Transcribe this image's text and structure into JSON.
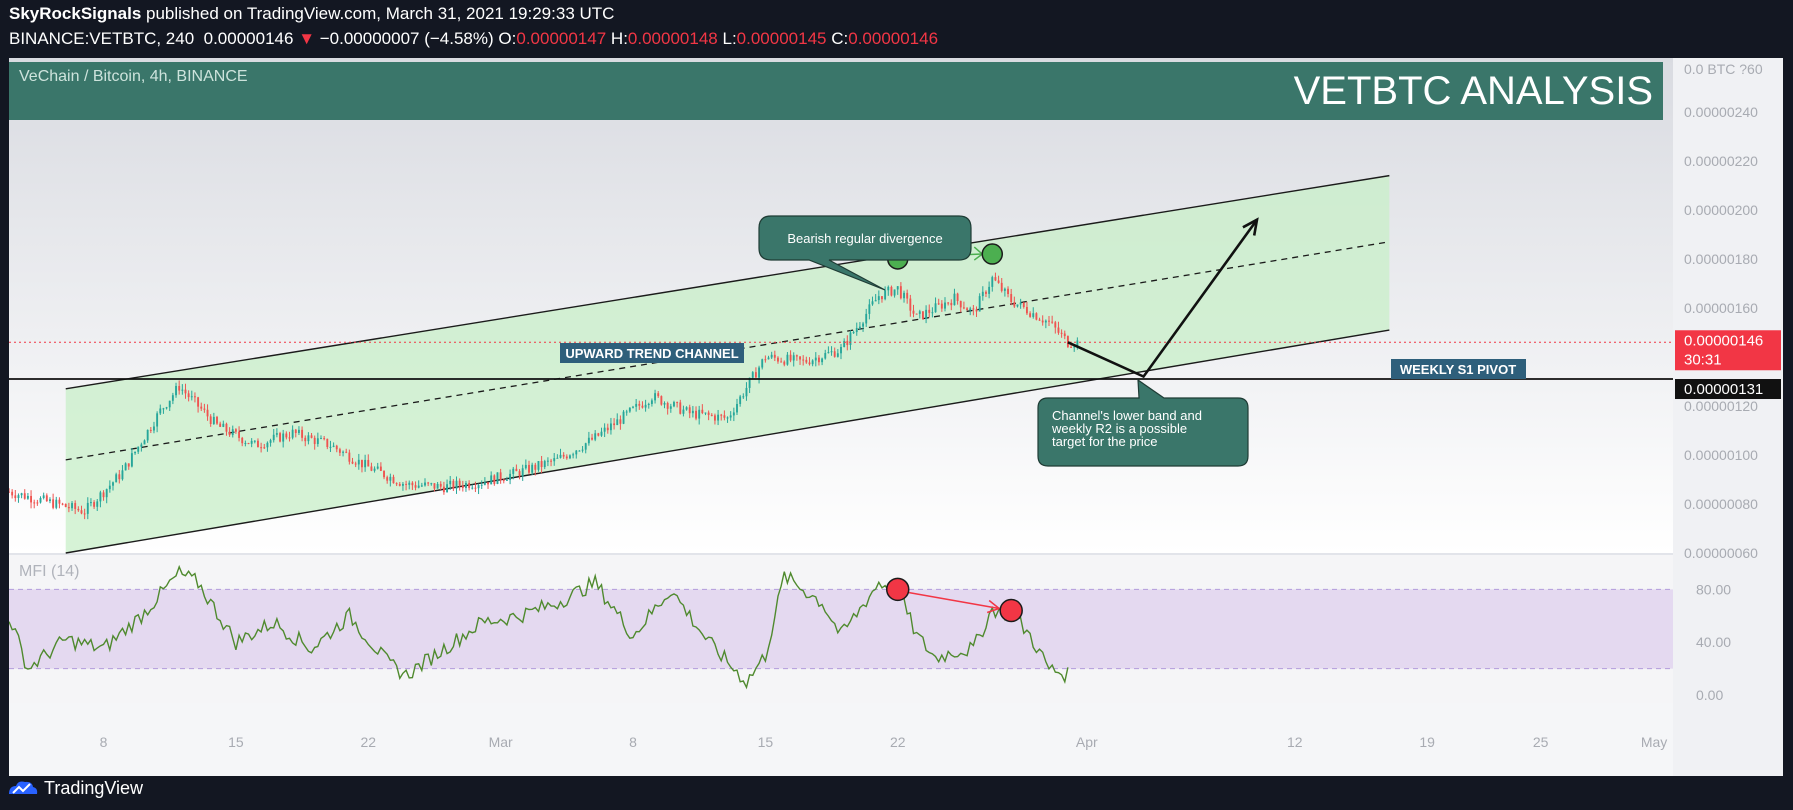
{
  "header": {
    "publisher": "SkyRockSignals",
    "published_text": "published on TradingView.com, March 31, 2021 19:29:33 UTC",
    "symbol": "BINANCE:VETBTC, 240",
    "last": "0.00000146",
    "change_arrow": "▼",
    "change": "−0.00000007 (−4.58%)",
    "o_label": "O:",
    "o": "0.00000147",
    "h_label": "H:",
    "h": "0.00000148",
    "l_label": "L:",
    "l": "0.00000145",
    "c_label": "C:",
    "c": "0.00000146"
  },
  "banner": {
    "pair": "VeChain / Bitcoin, 4h, BINANCE",
    "title": "VETBTC ANALYSIS",
    "color": "#3a766a"
  },
  "price_axis": {
    "ticks": [
      "0.00000240",
      "0.00000220",
      "0.00000200",
      "0.00000180",
      "0.00000160",
      "0.00000120",
      "0.00000100",
      "0.00000080",
      "0.00000060"
    ],
    "top_label": "0.0 BTC ?60",
    "last_price": "0.00000146",
    "countdown": "30:31",
    "pivot_price": "0.00000131"
  },
  "annotations": {
    "channel_label": "UPWARD TREND CHANNEL",
    "pivot_label": "WEEKLY S1 PIVOT",
    "divergence_note": "Bearish regular divergence",
    "target_note": [
      "Channel's lower band and",
      "weekly R2 is a possible",
      "target for the price"
    ]
  },
  "mfi": {
    "label": "MFI (14)",
    "ticks": [
      "80.00",
      "40.00",
      "0.00"
    ],
    "upper_band": 80,
    "lower_band": 20
  },
  "time_axis": {
    "labels": [
      "8",
      "15",
      "22",
      "Mar",
      "8",
      "15",
      "22",
      "Apr",
      "12",
      "19",
      "25",
      "May"
    ]
  },
  "footer": {
    "brand": "TradingView"
  },
  "chart_data": [
    {
      "type": "candlestick",
      "title": "VeChain / Bitcoin, 4h, BINANCE",
      "x_range": [
        "2021-02-03",
        "2021-05-02"
      ],
      "ylim": [
        6e-07,
        2.62e-06
      ],
      "close_anchors": [
        {
          "x": "2021-02-03",
          "y": 8.5e-07
        },
        {
          "x": "2021-02-05",
          "y": 8.1e-07
        },
        {
          "x": "2021-02-07",
          "y": 7.7e-07
        },
        {
          "x": "2021-02-09",
          "y": 9.3e-07
        },
        {
          "x": "2021-02-11",
          "y": 1.18e-06
        },
        {
          "x": "2021-02-12",
          "y": 1.28e-06
        },
        {
          "x": "2021-02-14",
          "y": 1.12e-06
        },
        {
          "x": "2021-02-16",
          "y": 1.04e-06
        },
        {
          "x": "2021-02-18",
          "y": 1.09e-06
        },
        {
          "x": "2021-02-20",
          "y": 1.04e-06
        },
        {
          "x": "2021-02-22",
          "y": 9.5e-07
        },
        {
          "x": "2021-02-24",
          "y": 8.8e-07
        },
        {
          "x": "2021-02-26",
          "y": 8.7e-07
        },
        {
          "x": "2021-02-28",
          "y": 8.9e-07
        },
        {
          "x": "2021-03-02",
          "y": 9.3e-07
        },
        {
          "x": "2021-03-04",
          "y": 9.8e-07
        },
        {
          "x": "2021-03-06",
          "y": 1.07e-06
        },
        {
          "x": "2021-03-09",
          "y": 1.24e-06
        },
        {
          "x": "2021-03-11",
          "y": 1.17e-06
        },
        {
          "x": "2021-03-13",
          "y": 1.15e-06
        },
        {
          "x": "2021-03-15",
          "y": 1.4e-06
        },
        {
          "x": "2021-03-17",
          "y": 1.38e-06
        },
        {
          "x": "2021-03-19",
          "y": 1.43e-06
        },
        {
          "x": "2021-03-21",
          "y": 1.65e-06
        },
        {
          "x": "2021-03-22",
          "y": 1.68e-06
        },
        {
          "x": "2021-03-23",
          "y": 1.56e-06
        },
        {
          "x": "2021-03-25",
          "y": 1.64e-06
        },
        {
          "x": "2021-03-26",
          "y": 1.58e-06
        },
        {
          "x": "2021-03-27",
          "y": 1.72e-06
        },
        {
          "x": "2021-03-28",
          "y": 1.63e-06
        },
        {
          "x": "2021-03-30",
          "y": 1.54e-06
        },
        {
          "x": "2021-03-31",
          "y": 1.46e-06
        }
      ],
      "last": 1.46e-06,
      "open": 1.47e-06,
      "high": 1.48e-06,
      "low": 1.45e-06,
      "close": 1.46e-06,
      "horizontal_lines": [
        {
          "name": "WEEKLY S1 PIVOT",
          "y": 1.31e-06
        }
      ],
      "channel": {
        "label": "UPWARD TREND CHANNEL",
        "upper": [
          {
            "x": "2021-02-06",
            "y": 1.27e-06
          },
          {
            "x": "2021-04-17",
            "y": 2.14e-06
          }
        ],
        "middle": [
          {
            "x": "2021-02-06",
            "y": 9.8e-07
          },
          {
            "x": "2021-04-17",
            "y": 1.87e-06
          }
        ],
        "lower": [
          {
            "x": "2021-02-06",
            "y": 6e-07
          },
          {
            "x": "2021-04-17",
            "y": 1.51e-06
          }
        ]
      },
      "projection": [
        {
          "x": "2021-03-31",
          "y": 1.46e-06
        },
        {
          "x": "2021-04-04",
          "y": 1.32e-06
        },
        {
          "x": "2021-04-10",
          "y": 1.96e-06
        }
      ],
      "divergence_points": [
        {
          "x": "2021-03-22",
          "y": 1.8e-06
        },
        {
          "x": "2021-03-27",
          "y": 1.82e-06
        }
      ],
      "colors": {
        "up": "#26a69a",
        "down": "#ef5350",
        "channel_fill": "#c8efc8",
        "banner": "#3a766a",
        "marker": "#4caf50"
      }
    },
    {
      "type": "line",
      "title": "MFI (14)",
      "ylim": [
        -6,
        106
      ],
      "bands": [
        20,
        80
      ],
      "anchors": [
        {
          "x": "2021-02-03",
          "y": 60
        },
        {
          "x": "2021-02-04",
          "y": 20
        },
        {
          "x": "2021-02-06",
          "y": 42
        },
        {
          "x": "2021-02-08",
          "y": 35
        },
        {
          "x": "2021-02-10",
          "y": 60
        },
        {
          "x": "2021-02-12",
          "y": 92
        },
        {
          "x": "2021-02-13",
          "y": 85
        },
        {
          "x": "2021-02-15",
          "y": 40
        },
        {
          "x": "2021-02-17",
          "y": 55
        },
        {
          "x": "2021-02-19",
          "y": 35
        },
        {
          "x": "2021-02-21",
          "y": 60
        },
        {
          "x": "2021-02-23",
          "y": 25
        },
        {
          "x": "2021-02-24",
          "y": 15
        },
        {
          "x": "2021-02-26",
          "y": 35
        },
        {
          "x": "2021-02-28",
          "y": 55
        },
        {
          "x": "2021-03-02",
          "y": 60
        },
        {
          "x": "2021-03-04",
          "y": 70
        },
        {
          "x": "2021-03-06",
          "y": 85
        },
        {
          "x": "2021-03-08",
          "y": 45
        },
        {
          "x": "2021-03-10",
          "y": 80
        },
        {
          "x": "2021-03-12",
          "y": 40
        },
        {
          "x": "2021-03-14",
          "y": 10
        },
        {
          "x": "2021-03-15",
          "y": 30
        },
        {
          "x": "2021-03-16",
          "y": 90
        },
        {
          "x": "2021-03-18",
          "y": 70
        },
        {
          "x": "2021-03-19",
          "y": 45
        },
        {
          "x": "2021-03-20",
          "y": 65
        },
        {
          "x": "2021-03-21",
          "y": 85
        },
        {
          "x": "2021-03-22",
          "y": 79
        },
        {
          "x": "2021-03-23",
          "y": 45
        },
        {
          "x": "2021-03-24",
          "y": 28
        },
        {
          "x": "2021-03-25",
          "y": 33
        },
        {
          "x": "2021-03-26",
          "y": 35
        },
        {
          "x": "2021-03-27",
          "y": 65
        },
        {
          "x": "2021-03-28",
          "y": 62
        },
        {
          "x": "2021-03-29",
          "y": 45
        },
        {
          "x": "2021-03-30",
          "y": 20
        },
        {
          "x": "2021-03-31",
          "y": 15
        }
      ],
      "divergence_points": [
        {
          "x": "2021-03-22",
          "y": 80
        },
        {
          "x": "2021-03-28",
          "y": 64
        }
      ],
      "colors": {
        "line": "#4f8a2e",
        "fill": "#e4d9f0",
        "marker": "#f23645"
      }
    }
  ]
}
